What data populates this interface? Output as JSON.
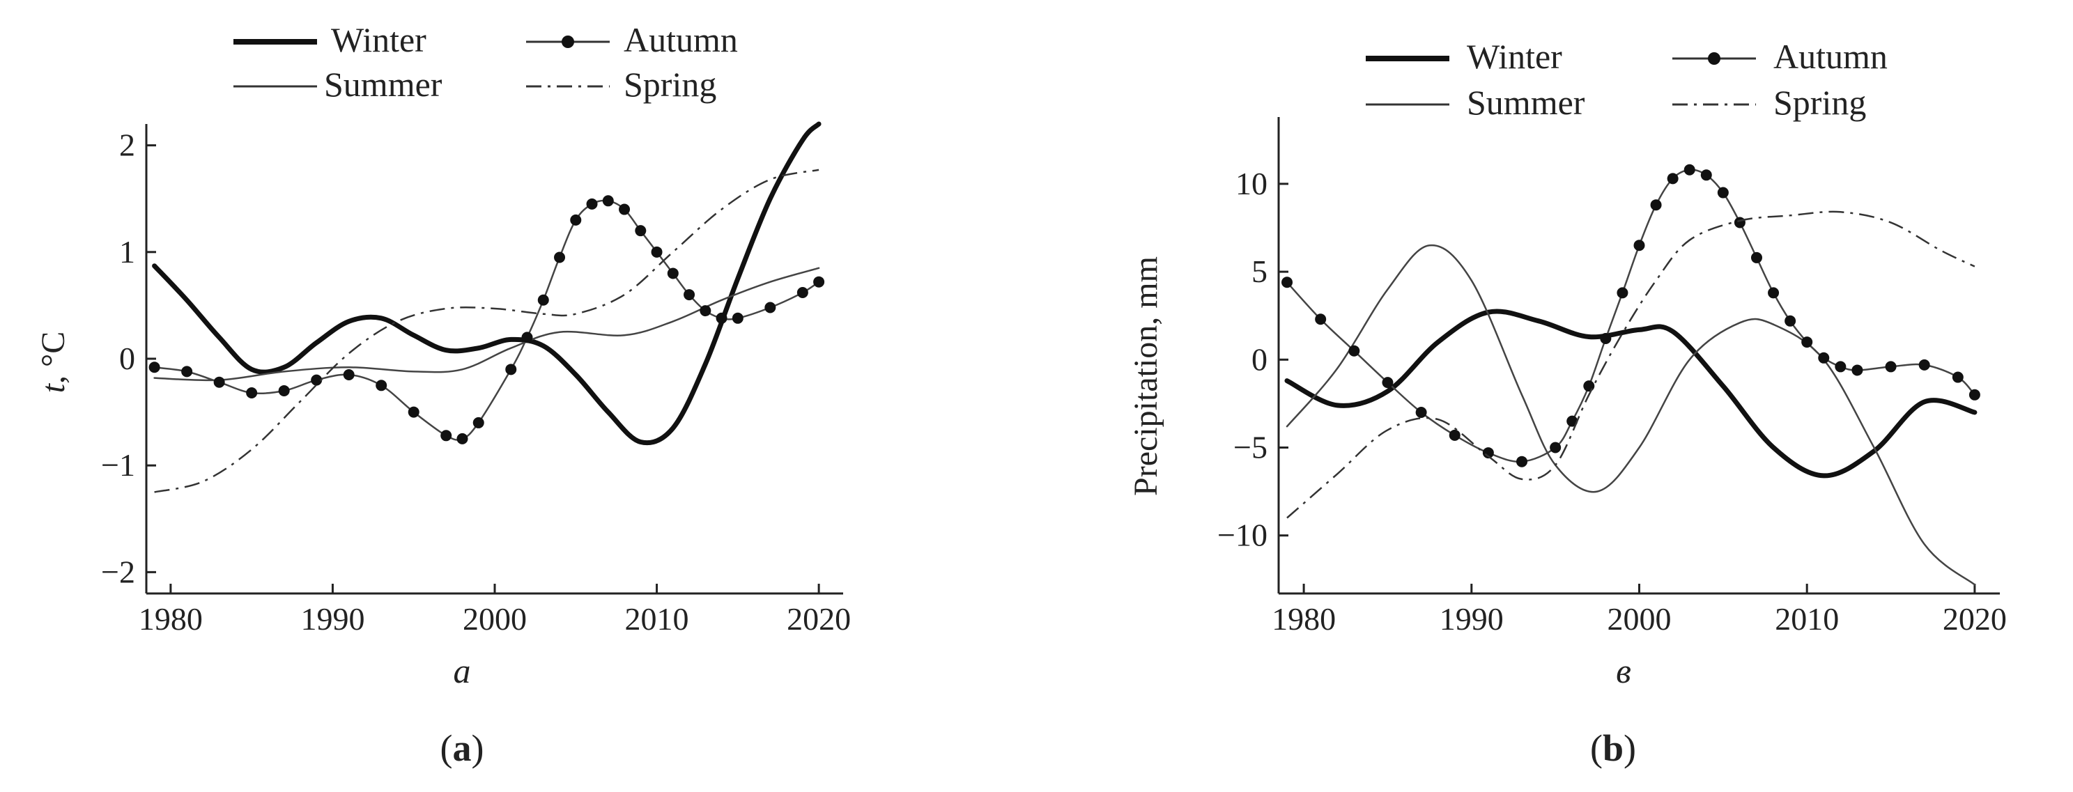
{
  "chart_data": [
    {
      "type": "line",
      "panel_label": "a",
      "caption": "a",
      "ylabel_var": "t",
      "ylabel_unit": ", °C",
      "xlim": [
        1978.5,
        2021.5
      ],
      "ylim": [
        -2.2,
        2.2
      ],
      "xticks": [
        1980,
        1990,
        2000,
        2010,
        2020
      ],
      "yticks": [
        -2,
        -1,
        0,
        1,
        2
      ],
      "ytick_labels": [
        "−2",
        "−1",
        "0",
        "1",
        "2"
      ],
      "legend_position": "top",
      "series": [
        {
          "name": "Winter",
          "style": "thick",
          "x": [
            1979,
            1981,
            1983,
            1985,
            1987,
            1989,
            1991,
            1993,
            1995,
            1997,
            1999,
            2001,
            2003,
            2005,
            2007,
            2009,
            2011,
            2013,
            2015,
            2017,
            2019,
            2020
          ],
          "y": [
            0.87,
            0.55,
            0.2,
            -0.1,
            -0.08,
            0.15,
            0.35,
            0.38,
            0.22,
            0.08,
            0.1,
            0.18,
            0.12,
            -0.15,
            -0.5,
            -0.78,
            -0.65,
            -0.05,
            0.75,
            1.5,
            2.05,
            2.2
          ]
        },
        {
          "name": "Summer",
          "style": "thin",
          "x": [
            1979,
            1983,
            1987,
            1991,
            1995,
            1998,
            2001,
            2004,
            2008,
            2011,
            2014,
            2017,
            2020
          ],
          "y": [
            -0.18,
            -0.2,
            -0.12,
            -0.08,
            -0.12,
            -0.1,
            0.1,
            0.25,
            0.22,
            0.35,
            0.55,
            0.72,
            0.85
          ]
        },
        {
          "name": "Autumn",
          "style": "dots",
          "x": [
            1979,
            1981,
            1983,
            1985,
            1987,
            1989,
            1991,
            1993,
            1995,
            1997,
            1998,
            1999,
            2001,
            2002,
            2003,
            2004,
            2005,
            2006,
            2007,
            2008,
            2009,
            2010,
            2011,
            2012,
            2013,
            2014,
            2015,
            2017,
            2019,
            2020
          ],
          "y": [
            -0.08,
            -0.12,
            -0.22,
            -0.32,
            -0.3,
            -0.2,
            -0.15,
            -0.25,
            -0.5,
            -0.72,
            -0.75,
            -0.6,
            -0.1,
            0.2,
            0.55,
            0.95,
            1.3,
            1.45,
            1.48,
            1.4,
            1.2,
            1.0,
            0.8,
            0.6,
            0.45,
            0.38,
            0.38,
            0.48,
            0.62,
            0.72
          ]
        },
        {
          "name": "Spring",
          "style": "dashdot",
          "x": [
            1979,
            1982,
            1985,
            1988,
            1991,
            1994,
            1997,
            2000,
            2003,
            2005,
            2008,
            2011,
            2014,
            2017,
            2020
          ],
          "y": [
            -1.25,
            -1.15,
            -0.85,
            -0.4,
            0.05,
            0.35,
            0.47,
            0.47,
            0.42,
            0.42,
            0.6,
            1.0,
            1.4,
            1.68,
            1.77
          ]
        }
      ]
    },
    {
      "type": "line",
      "panel_label": "b",
      "caption": "в",
      "ylabel": "Precipitation, mm",
      "xlim": [
        1978.5,
        2021.5
      ],
      "ylim": [
        -13.3,
        13.8
      ],
      "xticks": [
        1980,
        1990,
        2000,
        2010,
        2020
      ],
      "yticks": [
        -10,
        -5,
        0,
        5,
        10
      ],
      "ytick_labels": [
        "−10",
        "−5",
        "0",
        "5",
        "10"
      ],
      "legend_position": "top",
      "series": [
        {
          "name": "Winter",
          "style": "thick",
          "x": [
            1979,
            1982,
            1985,
            1988,
            1991,
            1994,
            1997,
            2000,
            2002,
            2005,
            2008,
            2011,
            2014,
            2017,
            2020
          ],
          "y": [
            -1.2,
            -2.6,
            -1.8,
            1.0,
            2.7,
            2.2,
            1.3,
            1.7,
            1.6,
            -1.5,
            -5.0,
            -6.6,
            -5.2,
            -2.4,
            -3.0
          ]
        },
        {
          "name": "Summer",
          "style": "thin",
          "x": [
            1979,
            1982,
            1985,
            1987.5,
            1990,
            1993,
            1995,
            1997.5,
            2000,
            2003,
            2006,
            2008,
            2011,
            2014,
            2017,
            2020
          ],
          "y": [
            -3.8,
            -0.5,
            4.0,
            6.5,
            4.5,
            -2.0,
            -6.0,
            -7.5,
            -5.0,
            0.0,
            2.1,
            2.0,
            0.0,
            -5.0,
            -10.5,
            -12.8
          ]
        },
        {
          "name": "Autumn",
          "style": "dots",
          "x": [
            1979,
            1981,
            1983,
            1985,
            1987,
            1989,
            1991,
            1993,
            1995,
            1996,
            1997,
            1998,
            1999,
            2000,
            2001,
            2002,
            2003,
            2004,
            2005,
            2006,
            2007,
            2008,
            2009,
            2010,
            2011,
            2012,
            2013,
            2015,
            2017,
            2019,
            2020
          ],
          "y": [
            4.4,
            2.3,
            0.5,
            -1.3,
            -3.0,
            -4.3,
            -5.3,
            -5.8,
            -5.0,
            -3.5,
            -1.5,
            1.2,
            3.8,
            6.5,
            8.8,
            10.3,
            10.8,
            10.5,
            9.5,
            7.8,
            5.8,
            3.8,
            2.2,
            1.0,
            0.1,
            -0.4,
            -0.6,
            -0.4,
            -0.3,
            -1.0,
            -2.0
          ]
        },
        {
          "name": "Spring",
          "style": "dashdot",
          "x": [
            1979,
            1982,
            1985,
            1988,
            1991,
            1993,
            1995,
            1997,
            1999,
            2001,
            2003,
            2006,
            2009,
            2012,
            2015,
            2018,
            2020
          ],
          "y": [
            -9.0,
            -6.5,
            -4.0,
            -3.4,
            -5.5,
            -6.8,
            -6.0,
            -2.0,
            1.5,
            4.5,
            6.8,
            7.9,
            8.2,
            8.4,
            7.8,
            6.2,
            5.3
          ]
        }
      ]
    }
  ]
}
